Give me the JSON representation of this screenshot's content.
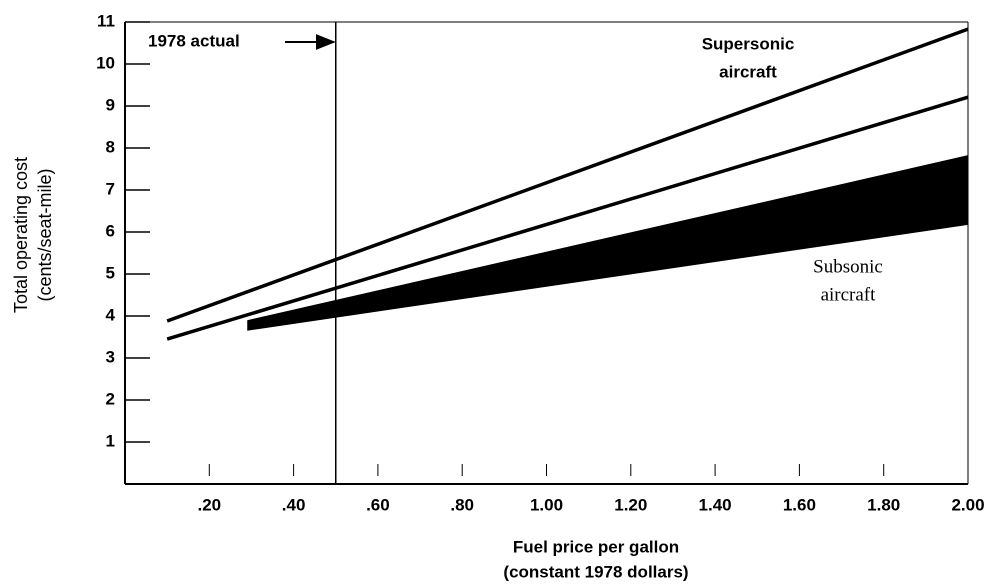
{
  "chart_data": {
    "type": "line",
    "xlabel": [
      "Fuel price per gallon",
      "(constant 1978 dollars)"
    ],
    "ylabel": [
      "Total operating cost",
      "(cents/seat-mile)"
    ],
    "xlim": [
      0,
      2.0
    ],
    "ylim": [
      0,
      11
    ],
    "xticks": [
      {
        "value": 0.2,
        "label": ".20"
      },
      {
        "value": 0.4,
        "label": ".40"
      },
      {
        "value": 0.6,
        "label": ".60"
      },
      {
        "value": 0.8,
        "label": ".80"
      },
      {
        "value": 1.0,
        "label": "1.00"
      },
      {
        "value": 1.2,
        "label": "1.20"
      },
      {
        "value": 1.4,
        "label": "1.40"
      },
      {
        "value": 1.6,
        "label": "1.60"
      },
      {
        "value": 1.8,
        "label": "1.80"
      },
      {
        "value": 2.0,
        "label": "2.00"
      }
    ],
    "yticks": [
      1,
      2,
      3,
      4,
      5,
      6,
      7,
      8,
      9,
      10,
      11
    ],
    "series": [
      {
        "color": "#000000",
        "x": [
          0.1,
          2.0
        ],
        "values": [
          3.88,
          10.83
        ]
      },
      {
        "color": "#000000",
        "x": [
          0.1,
          2.0
        ],
        "values": [
          3.45,
          9.21
        ]
      }
    ],
    "band": {
      "color": "#000000",
      "x": [
        0.29,
        2.0
      ],
      "upper": [
        3.9,
        7.83
      ],
      "lower": [
        3.65,
        6.17
      ]
    },
    "reference_line": {
      "x": 0.5,
      "label": "1978 actual"
    },
    "annotations": [
      {
        "lines": [
          "Supersonic",
          "aircraft"
        ]
      },
      {
        "lines": [
          "Subsonic",
          "aircraft"
        ]
      }
    ]
  }
}
